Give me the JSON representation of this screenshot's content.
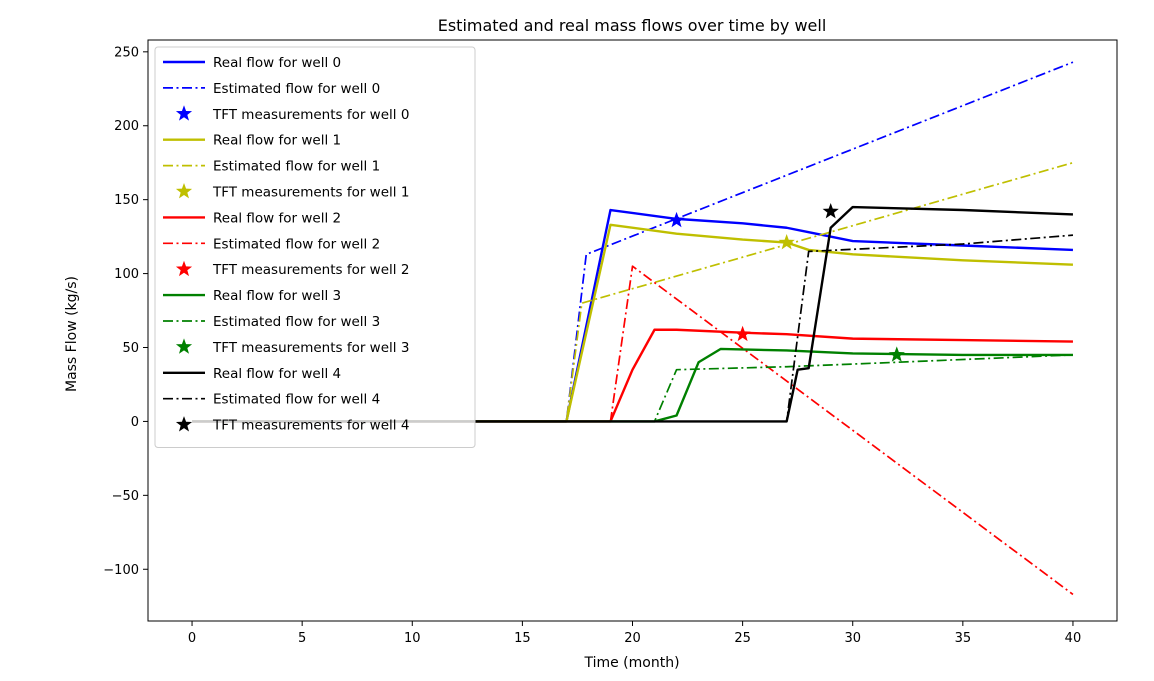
{
  "chart_data": {
    "type": "line",
    "title": "Estimated and real mass flows over time by well",
    "xlabel": "Time (month)",
    "ylabel": "Mass Flow (kg/s)",
    "xlim": [
      -2,
      42
    ],
    "ylim": [
      -135,
      258
    ],
    "xticks": [
      0,
      5,
      10,
      15,
      20,
      25,
      30,
      35,
      40
    ],
    "xtick_labels": [
      "0",
      "5",
      "10",
      "15",
      "20",
      "25",
      "30",
      "35",
      "40"
    ],
    "yticks": [
      -100,
      -50,
      0,
      50,
      100,
      150,
      200,
      250
    ],
    "ytick_labels": [
      "−100",
      "−50",
      "0",
      "50",
      "100",
      "150",
      "200",
      "250"
    ],
    "grid": false,
    "legend_placement": "upper-left",
    "series": [
      {
        "name": "Real flow for well 0",
        "kind": "real",
        "color": "#0000ff",
        "x": [
          0,
          17,
          19,
          22,
          25,
          27,
          28,
          30,
          35,
          40
        ],
        "y": [
          0,
          0,
          143,
          137,
          134,
          131,
          128,
          122,
          119,
          116
        ]
      },
      {
        "name": "Estimated flow for well 0",
        "kind": "estimated",
        "color": "#0000ff",
        "x": [
          0,
          17,
          17.9,
          40
        ],
        "y": [
          0,
          0,
          113,
          243
        ]
      },
      {
        "name": "TFT measurements for well 0",
        "kind": "measurement",
        "color": "#0000ff",
        "x": [
          22
        ],
        "y": [
          136
        ]
      },
      {
        "name": "Real flow for well 1",
        "kind": "real",
        "color": "#bfbf00",
        "x": [
          0,
          17,
          19,
          22,
          25,
          27,
          28,
          30,
          35,
          40
        ],
        "y": [
          0,
          0,
          133,
          127,
          123,
          121,
          116,
          113,
          109,
          106
        ]
      },
      {
        "name": "Estimated flow for well 1",
        "kind": "estimated",
        "color": "#bfbf00",
        "x": [
          0,
          17,
          17.7,
          40
        ],
        "y": [
          0,
          0,
          80,
          175
        ]
      },
      {
        "name": "TFT measurements for well 1",
        "kind": "measurement",
        "color": "#bfbf00",
        "x": [
          27
        ],
        "y": [
          121
        ]
      },
      {
        "name": "Real flow for well 2",
        "kind": "real",
        "color": "#ff0000",
        "x": [
          0,
          19,
          20,
          21,
          22,
          25,
          27,
          30,
          35,
          40
        ],
        "y": [
          0,
          0,
          35,
          62,
          62,
          60,
          59,
          56,
          55,
          54
        ]
      },
      {
        "name": "Estimated flow for well 2",
        "kind": "estimated",
        "color": "#ff0000",
        "x": [
          0,
          19,
          20,
          40
        ],
        "y": [
          0,
          0,
          105,
          -117
        ]
      },
      {
        "name": "TFT measurements for well 2",
        "kind": "measurement",
        "color": "#ff0000",
        "x": [
          25
        ],
        "y": [
          59
        ]
      },
      {
        "name": "Real flow for well 3",
        "kind": "real",
        "color": "#008000",
        "x": [
          0,
          21,
          22,
          23,
          24,
          27,
          30,
          35,
          40
        ],
        "y": [
          0,
          0,
          4,
          40,
          49,
          48,
          46,
          45,
          45
        ]
      },
      {
        "name": "Estimated flow for well 3",
        "kind": "estimated",
        "color": "#008000",
        "x": [
          0,
          21,
          22,
          27,
          32,
          40
        ],
        "y": [
          0,
          0,
          35,
          37,
          40,
          45
        ]
      },
      {
        "name": "TFT measurements for well 3",
        "kind": "measurement",
        "color": "#008000",
        "x": [
          32
        ],
        "y": [
          45
        ]
      },
      {
        "name": "Real flow for well 4",
        "kind": "real",
        "color": "#000000",
        "x": [
          0,
          27,
          27.5,
          28,
          29,
          30,
          35,
          40
        ],
        "y": [
          0,
          0,
          35,
          36,
          131,
          145,
          143,
          140
        ]
      },
      {
        "name": "Estimated flow for well 4",
        "kind": "estimated",
        "color": "#000000",
        "x": [
          0,
          27,
          28,
          35,
          40
        ],
        "y": [
          0,
          0,
          115,
          120,
          126
        ]
      },
      {
        "name": "TFT measurements for well 4",
        "kind": "measurement",
        "color": "#000000",
        "x": [
          29
        ],
        "y": [
          142
        ]
      }
    ]
  }
}
